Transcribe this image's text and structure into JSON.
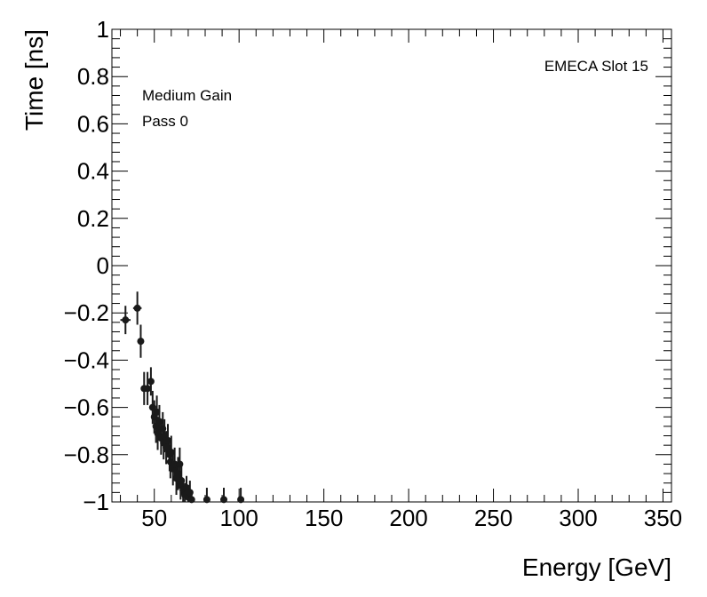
{
  "chart_data": {
    "type": "scatter",
    "xlabel": "Energy [GeV]",
    "ylabel": "Time [ns]",
    "xlim": [
      25,
      355
    ],
    "ylim": [
      -1,
      1
    ],
    "x_ticks": [
      50,
      100,
      150,
      200,
      250,
      300,
      350
    ],
    "x_tick_labels": [
      "50",
      "100",
      "150",
      "200",
      "250",
      "300",
      "350"
    ],
    "y_ticks": [
      -1,
      -0.8,
      -0.6,
      -0.4,
      -0.2,
      0,
      0.2,
      0.4,
      0.6,
      0.8,
      1
    ],
    "y_tick_labels": [
      "−1",
      "−0.8",
      "−0.6",
      "−0.4",
      "−0.2",
      "0",
      "0.2",
      "0.4",
      "0.6",
      "0.8",
      "1"
    ],
    "annotations": {
      "slot": "EMECA Slot 15",
      "gain": "Medium Gain",
      "pass": "Pass 0"
    },
    "points": [
      {
        "x": 33,
        "y": -0.23,
        "xerr": 3,
        "yerr": 0.06
      },
      {
        "x": 40,
        "y": -0.18,
        "xerr": 2.5,
        "yerr": 0.07
      },
      {
        "x": 42,
        "y": -0.32,
        "xerr": 1.5,
        "yerr": 0.07
      },
      {
        "x": 44,
        "y": -0.52,
        "xerr": 1.5,
        "yerr": 0.07
      },
      {
        "x": 46,
        "y": -0.52,
        "xerr": 1.5,
        "yerr": 0.07
      },
      {
        "x": 48,
        "y": -0.49,
        "xerr": 1.2,
        "yerr": 0.06
      },
      {
        "x": 49,
        "y": -0.6,
        "xerr": 1.2,
        "yerr": 0.07
      },
      {
        "x": 50,
        "y": -0.64,
        "xerr": 1.2,
        "yerr": 0.07
      },
      {
        "x": 51,
        "y": -0.68,
        "xerr": 1.2,
        "yerr": 0.07
      },
      {
        "x": 51.5,
        "y": -0.62,
        "xerr": 1.2,
        "yerr": 0.07
      },
      {
        "x": 52,
        "y": -0.71,
        "xerr": 1.2,
        "yerr": 0.07
      },
      {
        "x": 53,
        "y": -0.66,
        "xerr": 1.2,
        "yerr": 0.07
      },
      {
        "x": 54,
        "y": -0.73,
        "xerr": 1.2,
        "yerr": 0.07
      },
      {
        "x": 55,
        "y": -0.69,
        "xerr": 1.2,
        "yerr": 0.07
      },
      {
        "x": 55.5,
        "y": -0.75,
        "xerr": 1.2,
        "yerr": 0.07
      },
      {
        "x": 56,
        "y": -0.72,
        "xerr": 1.2,
        "yerr": 0.07
      },
      {
        "x": 57,
        "y": -0.77,
        "xerr": 1.2,
        "yerr": 0.07
      },
      {
        "x": 58,
        "y": -0.74,
        "xerr": 1.2,
        "yerr": 0.07
      },
      {
        "x": 59,
        "y": -0.8,
        "xerr": 1.2,
        "yerr": 0.07
      },
      {
        "x": 59.5,
        "y": -0.83,
        "xerr": 1.2,
        "yerr": 0.07
      },
      {
        "x": 60,
        "y": -0.79,
        "xerr": 1.2,
        "yerr": 0.07
      },
      {
        "x": 61,
        "y": -0.86,
        "xerr": 1.2,
        "yerr": 0.07
      },
      {
        "x": 62,
        "y": -0.84,
        "xerr": 1.2,
        "yerr": 0.07
      },
      {
        "x": 63,
        "y": -0.9,
        "xerr": 1.2,
        "yerr": 0.07
      },
      {
        "x": 64,
        "y": -0.88,
        "xerr": 1.2,
        "yerr": 0.07
      },
      {
        "x": 65,
        "y": -0.84,
        "xerr": 1.2,
        "yerr": 0.07
      },
      {
        "x": 65.5,
        "y": -0.93,
        "xerr": 1.2,
        "yerr": 0.06
      },
      {
        "x": 66,
        "y": -0.91,
        "xerr": 1.2,
        "yerr": 0.06
      },
      {
        "x": 67,
        "y": -0.95,
        "xerr": 1.2,
        "yerr": 0.05
      },
      {
        "x": 68,
        "y": -0.97,
        "xerr": 1.2,
        "yerr": 0.05
      },
      {
        "x": 69,
        "y": -0.94,
        "xerr": 1.2,
        "yerr": 0.05
      },
      {
        "x": 70,
        "y": -0.98,
        "xerr": 1.2,
        "yerr": 0.05
      },
      {
        "x": 71,
        "y": -0.96,
        "xerr": 1.2,
        "yerr": 0.05
      },
      {
        "x": 72,
        "y": -0.99,
        "xerr": 1.2,
        "yerr": 0.04
      },
      {
        "x": 81,
        "y": -0.99,
        "xerr": 1.5,
        "yerr": 0.05
      },
      {
        "x": 91,
        "y": -0.99,
        "xerr": 1.5,
        "yerr": 0.05
      },
      {
        "x": 101,
        "y": -0.99,
        "xerr": 1.5,
        "yerr": 0.05
      }
    ]
  },
  "colors": {
    "marker": "#1a1a1a",
    "axis": "#000000",
    "background": "#ffffff"
  }
}
